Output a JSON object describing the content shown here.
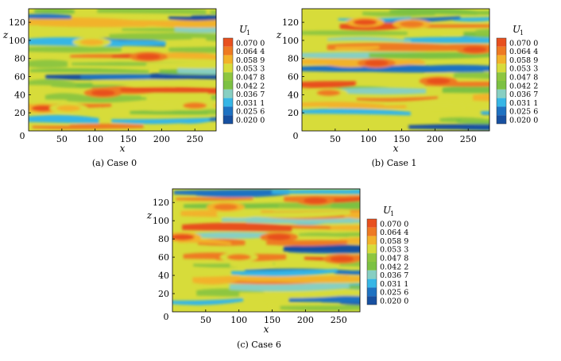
{
  "colors": {
    "levels": [
      "#1750a0",
      "#1e72c2",
      "#36b6e6",
      "#87cfc2",
      "#7cc143",
      "#8ec63f",
      "#d7dc3a",
      "#f2b229",
      "#ee7a22",
      "#e8501e"
    ]
  },
  "chart_data": [
    {
      "type": "heatmap",
      "caption": "(a) Case 0",
      "xlabel": "x",
      "ylabel": "z",
      "legend_title": "U",
      "legend_title_sub": "1",
      "legend_placement": "right",
      "xlim": [
        0,
        282
      ],
      "ylim": [
        0,
        135
      ],
      "x_ticks": [
        "50",
        "100",
        "150",
        "200",
        "250"
      ],
      "x_tick_values": [
        50,
        100,
        150,
        200,
        250
      ],
      "y_ticks": [
        "20",
        "40",
        "60",
        "80",
        "100",
        "120"
      ],
      "y_tick_values": [
        20,
        40,
        60,
        80,
        100,
        120
      ],
      "origin_label": "0",
      "levels": [
        "0.070 0",
        "0.064 4",
        "0.058 9",
        "0.053 3",
        "0.047 8",
        "0.042 2",
        "0.036 7",
        "0.031 1",
        "0.025 6",
        "0.020 0"
      ],
      "streaks": [
        {
          "z": 5,
          "value": 0.062
        },
        {
          "z": 12,
          "value": 0.03
        },
        {
          "z": 20,
          "value": 0.045
        },
        {
          "z": 28,
          "value": 0.058
        },
        {
          "z": 36,
          "value": 0.05
        },
        {
          "z": 45,
          "value": 0.064
        },
        {
          "z": 52,
          "value": 0.048
        },
        {
          "z": 60,
          "value": 0.025
        },
        {
          "z": 66,
          "value": 0.04
        },
        {
          "z": 74,
          "value": 0.052
        },
        {
          "z": 82,
          "value": 0.062
        },
        {
          "z": 90,
          "value": 0.045
        },
        {
          "z": 97,
          "value": 0.03
        },
        {
          "z": 104,
          "value": 0.05
        },
        {
          "z": 112,
          "value": 0.042
        },
        {
          "z": 119,
          "value": 0.056
        },
        {
          "z": 126,
          "value": 0.024
        },
        {
          "z": 132,
          "value": 0.045
        }
      ],
      "hot_spots": [
        {
          "x": 112,
          "z": 42,
          "value": 0.07
        },
        {
          "x": 180,
          "z": 82,
          "value": 0.068
        },
        {
          "x": 22,
          "z": 25,
          "value": 0.066
        },
        {
          "x": 250,
          "z": 28,
          "value": 0.062
        },
        {
          "x": 95,
          "z": 98,
          "value": 0.058
        },
        {
          "x": 60,
          "z": 25,
          "value": 0.06
        }
      ]
    },
    {
      "type": "heatmap",
      "caption": "(b) Case 1",
      "xlabel": "x",
      "ylabel": "z",
      "legend_title": "U",
      "legend_title_sub": "1",
      "legend_placement": "right",
      "xlim": [
        0,
        282
      ],
      "ylim": [
        0,
        135
      ],
      "x_ticks": [
        "50",
        "100",
        "150",
        "200",
        "250"
      ],
      "x_tick_values": [
        50,
        100,
        150,
        200,
        250
      ],
      "y_ticks": [
        "20",
        "40",
        "60",
        "80",
        "100",
        "120"
      ],
      "y_tick_values": [
        20,
        40,
        60,
        80,
        100,
        120
      ],
      "origin_label": "0",
      "levels": [
        "0.070 0",
        "0.064 4",
        "0.058 9",
        "0.053 3",
        "0.047 8",
        "0.042 2",
        "0.036 7",
        "0.031 1",
        "0.025 6",
        "0.020 0"
      ],
      "streaks": [
        {
          "z": 4,
          "value": 0.022
        },
        {
          "z": 12,
          "value": 0.045
        },
        {
          "z": 20,
          "value": 0.03
        },
        {
          "z": 28,
          "value": 0.052
        },
        {
          "z": 36,
          "value": 0.06
        },
        {
          "z": 44,
          "value": 0.042
        },
        {
          "z": 52,
          "value": 0.064
        },
        {
          "z": 60,
          "value": 0.05
        },
        {
          "z": 68,
          "value": 0.028
        },
        {
          "z": 76,
          "value": 0.056
        },
        {
          "z": 84,
          "value": 0.04
        },
        {
          "z": 92,
          "value": 0.06
        },
        {
          "z": 100,
          "value": 0.032
        },
        {
          "z": 108,
          "value": 0.048
        },
        {
          "z": 116,
          "value": 0.062
        },
        {
          "z": 124,
          "value": 0.03
        },
        {
          "z": 131,
          "value": 0.044
        }
      ],
      "hot_spots": [
        {
          "x": 205,
          "z": 55,
          "value": 0.07
        },
        {
          "x": 112,
          "z": 75,
          "value": 0.068
        },
        {
          "x": 260,
          "z": 90,
          "value": 0.068
        },
        {
          "x": 95,
          "z": 120,
          "value": 0.066
        },
        {
          "x": 165,
          "z": 118,
          "value": 0.064
        },
        {
          "x": 40,
          "z": 42,
          "value": 0.062
        }
      ]
    },
    {
      "type": "heatmap",
      "caption": "(c) Case 6",
      "xlabel": "x",
      "ylabel": "z",
      "legend_title": "U",
      "legend_title_sub": "1",
      "legend_placement": "right",
      "xlim": [
        0,
        282
      ],
      "ylim": [
        0,
        135
      ],
      "x_ticks": [
        "50",
        "100",
        "150",
        "200",
        "250"
      ],
      "x_tick_values": [
        50,
        100,
        150,
        200,
        250
      ],
      "y_ticks": [
        "20",
        "40",
        "60",
        "80",
        "100",
        "120"
      ],
      "y_tick_values": [
        20,
        40,
        60,
        80,
        100,
        120
      ],
      "origin_label": "0",
      "levels": [
        "0.070 0",
        "0.064 4",
        "0.058 9",
        "0.053 3",
        "0.047 8",
        "0.042 2",
        "0.036 7",
        "0.031 1",
        "0.025 6",
        "0.020 0"
      ],
      "streaks": [
        {
          "z": 5,
          "value": 0.05
        },
        {
          "z": 12,
          "value": 0.026
        },
        {
          "z": 20,
          "value": 0.054
        },
        {
          "z": 28,
          "value": 0.036
        },
        {
          "z": 36,
          "value": 0.058
        },
        {
          "z": 44,
          "value": 0.03
        },
        {
          "z": 52,
          "value": 0.05
        },
        {
          "z": 60,
          "value": 0.064
        },
        {
          "z": 68,
          "value": 0.028
        },
        {
          "z": 76,
          "value": 0.06
        },
        {
          "z": 84,
          "value": 0.044
        },
        {
          "z": 92,
          "value": 0.062
        },
        {
          "z": 100,
          "value": 0.034
        },
        {
          "z": 108,
          "value": 0.056
        },
        {
          "z": 116,
          "value": 0.046
        },
        {
          "z": 124,
          "value": 0.064
        },
        {
          "z": 131,
          "value": 0.03
        }
      ],
      "hot_spots": [
        {
          "x": 215,
          "z": 122,
          "value": 0.07
        },
        {
          "x": 255,
          "z": 58,
          "value": 0.07
        },
        {
          "x": 160,
          "z": 82,
          "value": 0.068
        },
        {
          "x": 15,
          "z": 82,
          "value": 0.066
        },
        {
          "x": 80,
          "z": 115,
          "value": 0.064
        },
        {
          "x": 100,
          "z": 60,
          "value": 0.062
        }
      ]
    }
  ]
}
